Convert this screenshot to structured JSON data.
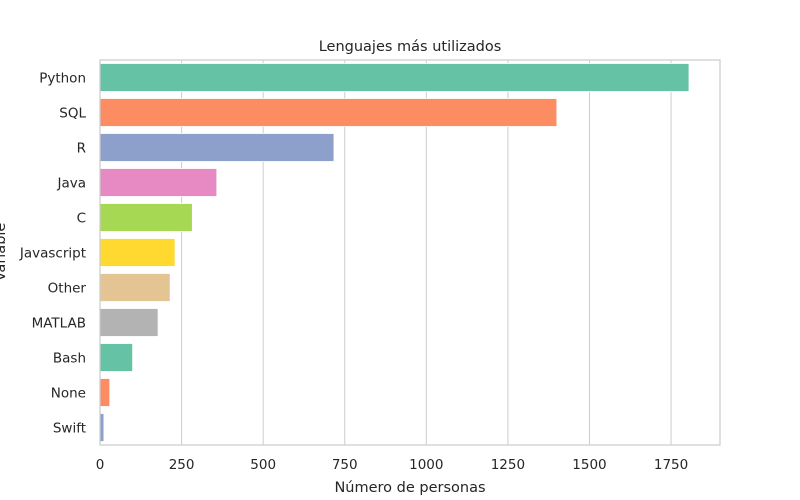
{
  "chart_data": {
    "type": "bar",
    "orientation": "horizontal",
    "title": "Lenguajes más utilizados",
    "xlabel": "Número de personas",
    "ylabel": "Variable",
    "categories": [
      "Python",
      "SQL",
      "R",
      "Java",
      "C",
      "Javascript",
      "Other",
      "MATLAB",
      "Bash",
      "None",
      "Swift"
    ],
    "values": [
      1805,
      1400,
      717,
      358,
      283,
      230,
      215,
      178,
      100,
      30,
      12
    ],
    "colors": [
      "#66c2a5",
      "#fc8d62",
      "#8da0cb",
      "#e78ac3",
      "#a6d854",
      "#ffd92f",
      "#e5c494",
      "#b3b3b3",
      "#66c2a5",
      "#fc8d62",
      "#8da0cb"
    ],
    "xlim": [
      0,
      1900
    ],
    "xticks": [
      0,
      250,
      500,
      750,
      1000,
      1250,
      1500,
      1750
    ],
    "grid": "vertical"
  }
}
